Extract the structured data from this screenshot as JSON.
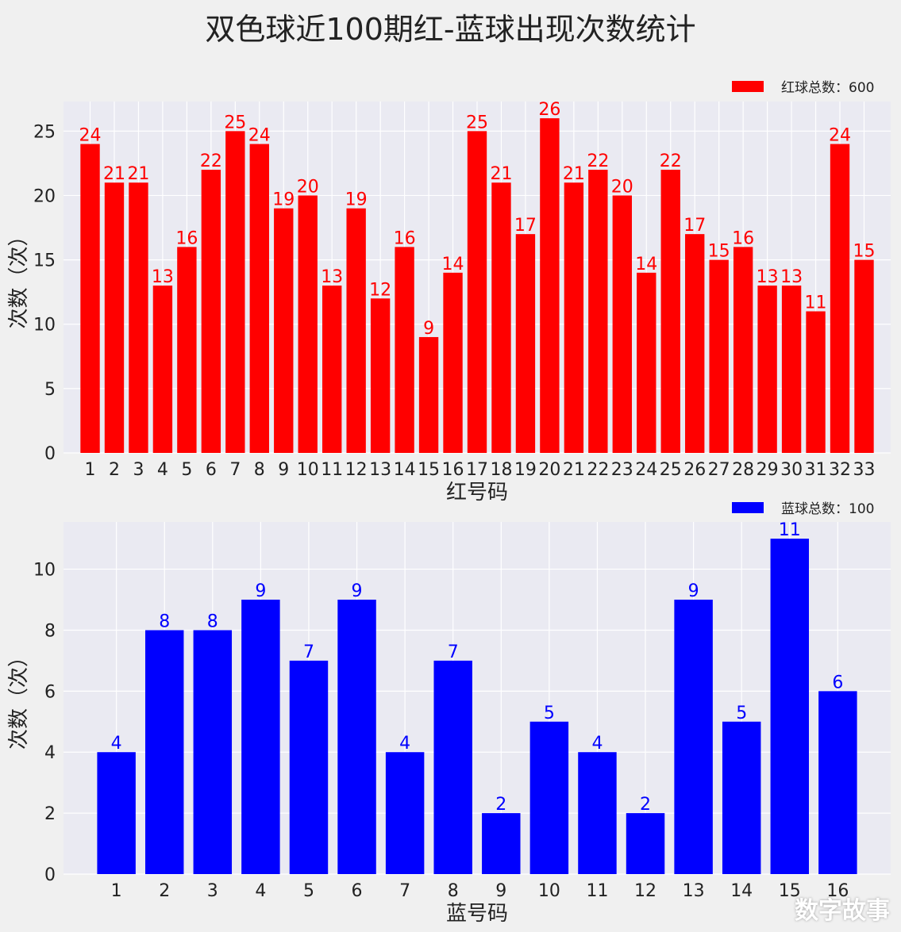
{
  "title": "双色球近100期红-蓝球出现次数统计",
  "watermark": "数字故事",
  "chart_data": [
    {
      "type": "bar",
      "color": "#ff0000",
      "legend": "红球总数：600",
      "legend_position": "top-right",
      "xlabel": "红号码",
      "ylabel": "次数（次）",
      "ylim": [
        0,
        27.3
      ],
      "yticks": [
        0,
        5,
        10,
        15,
        20,
        25
      ],
      "grid": true,
      "categories": [
        "1",
        "2",
        "3",
        "4",
        "5",
        "6",
        "7",
        "8",
        "9",
        "10",
        "11",
        "12",
        "13",
        "14",
        "15",
        "16",
        "17",
        "18",
        "19",
        "20",
        "21",
        "22",
        "23",
        "24",
        "25",
        "26",
        "27",
        "28",
        "29",
        "30",
        "31",
        "32",
        "33"
      ],
      "values": [
        24,
        21,
        21,
        13,
        16,
        22,
        25,
        24,
        19,
        20,
        13,
        19,
        12,
        16,
        9,
        14,
        25,
        21,
        17,
        26,
        21,
        22,
        20,
        14,
        22,
        17,
        15,
        16,
        13,
        13,
        11,
        24,
        15
      ]
    },
    {
      "type": "bar",
      "color": "#0000ff",
      "legend": "蓝球总数：100",
      "legend_position": "top-right",
      "xlabel": "蓝号码",
      "ylabel": "次数（次）",
      "ylim": [
        0,
        11.55
      ],
      "yticks": [
        0,
        2,
        4,
        6,
        8,
        10
      ],
      "grid": true,
      "categories": [
        "1",
        "2",
        "3",
        "4",
        "5",
        "6",
        "7",
        "8",
        "9",
        "10",
        "11",
        "12",
        "13",
        "14",
        "15",
        "16"
      ],
      "values": [
        4,
        8,
        8,
        9,
        7,
        9,
        4,
        7,
        2,
        5,
        4,
        2,
        9,
        5,
        11,
        6
      ]
    }
  ]
}
